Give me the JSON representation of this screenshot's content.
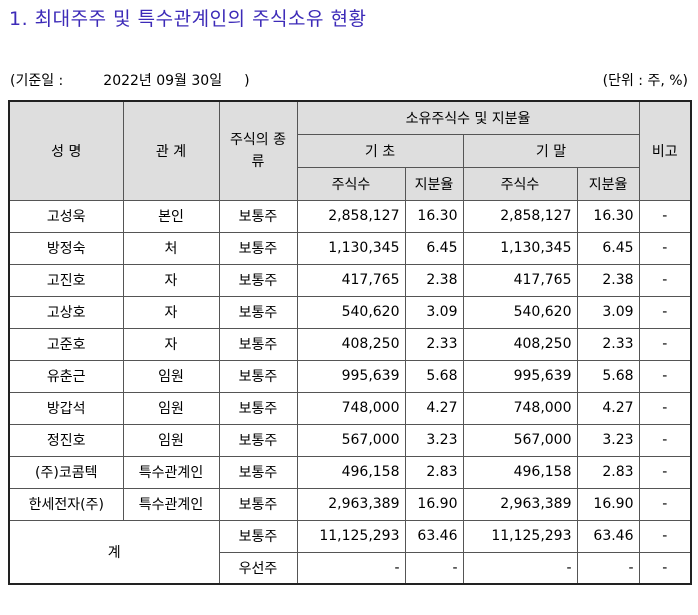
{
  "title": "1. 최대주주 및 특수관계인의 주식소유 현황",
  "base_date_label": "(기준일 :",
  "base_date": "2022년 09월 30일",
  "base_date_close": ")",
  "unit": "(단위 : 주, %)",
  "headers": {
    "name": "성 명",
    "relation": "관 계",
    "stock_type": "주식의 종류",
    "ownership": "소유주식수 및 지분율",
    "begin": "기 초",
    "end": "기 말",
    "shares": "주식수",
    "ratio": "지분율",
    "note": "비고"
  },
  "rows": [
    {
      "name": "고성욱",
      "relation": "본인",
      "type": "보통주",
      "begin_shares": "2,858,127",
      "begin_ratio": "16.30",
      "end_shares": "2,858,127",
      "end_ratio": "16.30",
      "note": "-"
    },
    {
      "name": "방정숙",
      "relation": "처",
      "type": "보통주",
      "begin_shares": "1,130,345",
      "begin_ratio": "6.45",
      "end_shares": "1,130,345",
      "end_ratio": "6.45",
      "note": "-"
    },
    {
      "name": "고진호",
      "relation": "자",
      "type": "보통주",
      "begin_shares": "417,765",
      "begin_ratio": "2.38",
      "end_shares": "417,765",
      "end_ratio": "2.38",
      "note": "-"
    },
    {
      "name": "고상호",
      "relation": "자",
      "type": "보통주",
      "begin_shares": "540,620",
      "begin_ratio": "3.09",
      "end_shares": "540,620",
      "end_ratio": "3.09",
      "note": "-"
    },
    {
      "name": "고준호",
      "relation": "자",
      "type": "보통주",
      "begin_shares": "408,250",
      "begin_ratio": "2.33",
      "end_shares": "408,250",
      "end_ratio": "2.33",
      "note": "-"
    },
    {
      "name": "유춘근",
      "relation": "임원",
      "type": "보통주",
      "begin_shares": "995,639",
      "begin_ratio": "5.68",
      "end_shares": "995,639",
      "end_ratio": "5.68",
      "note": "-"
    },
    {
      "name": "방갑석",
      "relation": "임원",
      "type": "보통주",
      "begin_shares": "748,000",
      "begin_ratio": "4.27",
      "end_shares": "748,000",
      "end_ratio": "4.27",
      "note": "-"
    },
    {
      "name": "정진호",
      "relation": "임원",
      "type": "보통주",
      "begin_shares": "567,000",
      "begin_ratio": "3.23",
      "end_shares": "567,000",
      "end_ratio": "3.23",
      "note": "-"
    },
    {
      "name": "(주)코콤텍",
      "relation": "특수관계인",
      "type": "보통주",
      "begin_shares": "496,158",
      "begin_ratio": "2.83",
      "end_shares": "496,158",
      "end_ratio": "2.83",
      "note": "-"
    },
    {
      "name": "한세전자(주)",
      "relation": "특수관계인",
      "type": "보통주",
      "begin_shares": "2,963,389",
      "begin_ratio": "16.90",
      "end_shares": "2,963,389",
      "end_ratio": "16.90",
      "note": "-"
    }
  ],
  "total": {
    "label": "계",
    "common": {
      "type": "보통주",
      "begin_shares": "11,125,293",
      "begin_ratio": "63.46",
      "end_shares": "11,125,293",
      "end_ratio": "63.46",
      "note": "-"
    },
    "preferred": {
      "type": "우선주",
      "begin_shares": "-",
      "begin_ratio": "-",
      "end_shares": "-",
      "end_ratio": "-",
      "note": "-"
    }
  }
}
